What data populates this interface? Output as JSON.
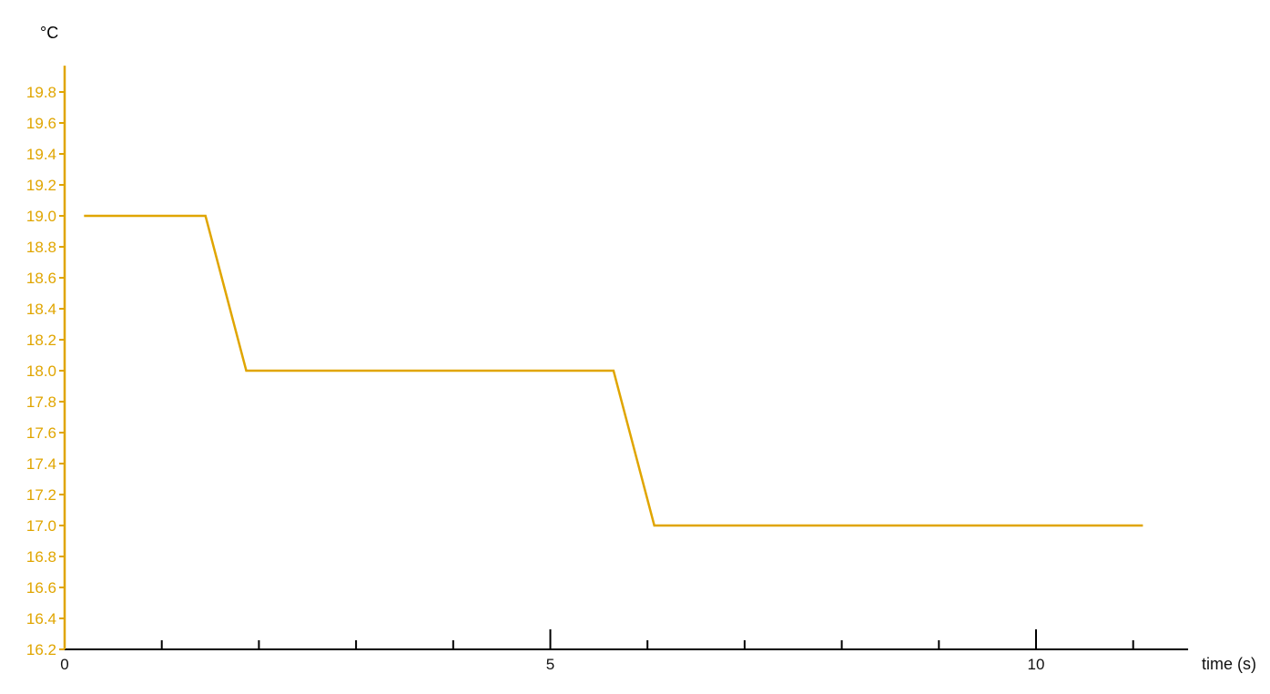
{
  "chart_data": {
    "type": "line",
    "y_unit_label": "°C",
    "xlabel": "time (s)",
    "xlim": [
      0,
      11.5
    ],
    "ylim": [
      16.2,
      19.97
    ],
    "x_ticks_major": [
      0,
      5,
      10
    ],
    "x_tick_labels": [
      "0",
      "5",
      "10"
    ],
    "x_ticks_minor": [
      1,
      2,
      3,
      4,
      6,
      7,
      8,
      9,
      11
    ],
    "y_ticks": [
      16.2,
      16.4,
      16.6,
      16.8,
      17.0,
      17.2,
      17.4,
      17.6,
      17.8,
      18.0,
      18.2,
      18.4,
      18.6,
      18.8,
      19.0,
      19.2,
      19.4,
      19.6,
      19.8
    ],
    "y_tick_labels": [
      "16.2",
      "16.4",
      "16.6",
      "16.8",
      "17.0",
      "17.2",
      "17.4",
      "17.6",
      "17.8",
      "18.0",
      "18.2",
      "18.4",
      "18.6",
      "18.8",
      "19.0",
      "19.2",
      "19.4",
      "19.6",
      "19.8"
    ],
    "grid": false,
    "colors": {
      "series": "#E0A500",
      "x_axis": "#000000"
    },
    "series": [
      {
        "x": [
          0.2,
          1.45,
          1.87,
          5.65,
          6.07,
          11.1
        ],
        "y": [
          19.0,
          19.0,
          18.0,
          18.0,
          17.0,
          17.0
        ]
      }
    ]
  }
}
